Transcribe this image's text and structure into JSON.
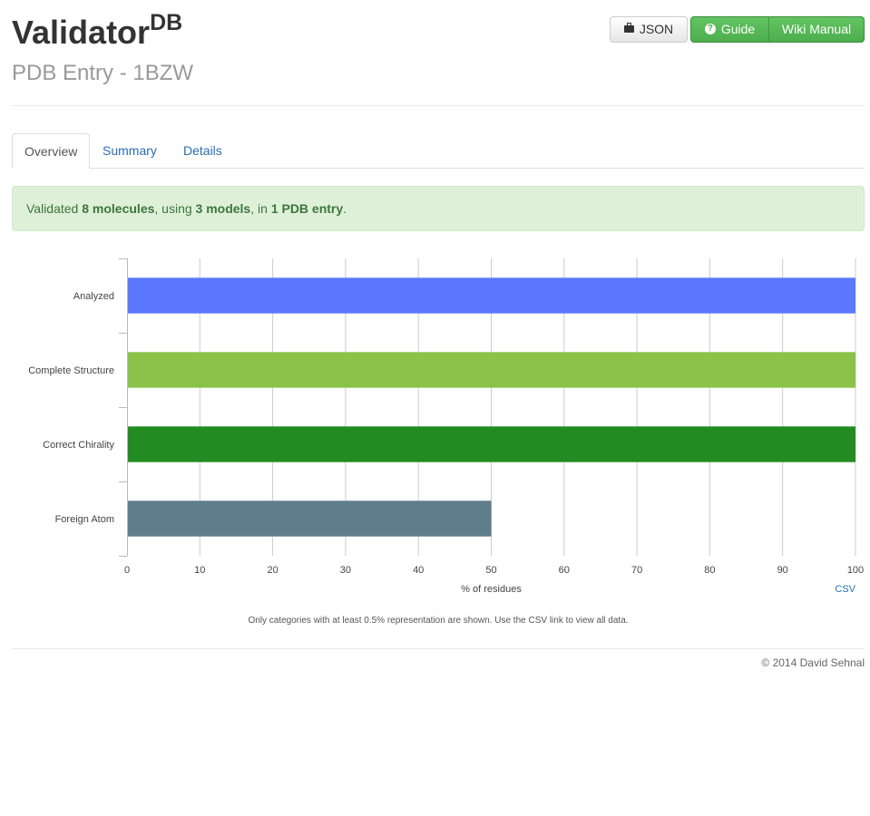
{
  "header": {
    "title": "Validator",
    "title_sup": "DB",
    "subtitle": "PDB Entry - 1BZW"
  },
  "buttons": {
    "json_label": "JSON",
    "guide_label": "Guide",
    "wiki_label": "Wiki Manual",
    "json_icon": "briefcase-icon",
    "guide_icon": "question-circle-icon"
  },
  "tabs": [
    {
      "label": "Overview",
      "active": true
    },
    {
      "label": "Summary",
      "active": false
    },
    {
      "label": "Details",
      "active": false
    }
  ],
  "alert": {
    "prefix": "Validated ",
    "molecules": "8 molecules",
    "sep1": ", using ",
    "models": "3 models",
    "sep2": ", in ",
    "entries": "1 PDB entry",
    "suffix": "."
  },
  "chart_data": {
    "type": "bar",
    "orientation": "horizontal",
    "categories": [
      "Analyzed",
      "Complete Structure",
      "Correct Chirality",
      "Foreign Atom"
    ],
    "values": [
      100,
      100,
      100,
      50
    ],
    "colors": [
      "#5b78fe",
      "#8bc34a",
      "#228b22",
      "#607d8b"
    ],
    "xlabel": "% of residues",
    "xlim": [
      0,
      100
    ],
    "xticks": [
      0,
      10,
      20,
      30,
      40,
      50,
      60,
      70,
      80,
      90,
      100
    ],
    "grid": true,
    "csv_label": "CSV"
  },
  "footnote": "Only categories with at least 0.5% representation are shown. Use the CSV link to view all data.",
  "footer": {
    "copyright": "© 2014 David Sehnal"
  }
}
